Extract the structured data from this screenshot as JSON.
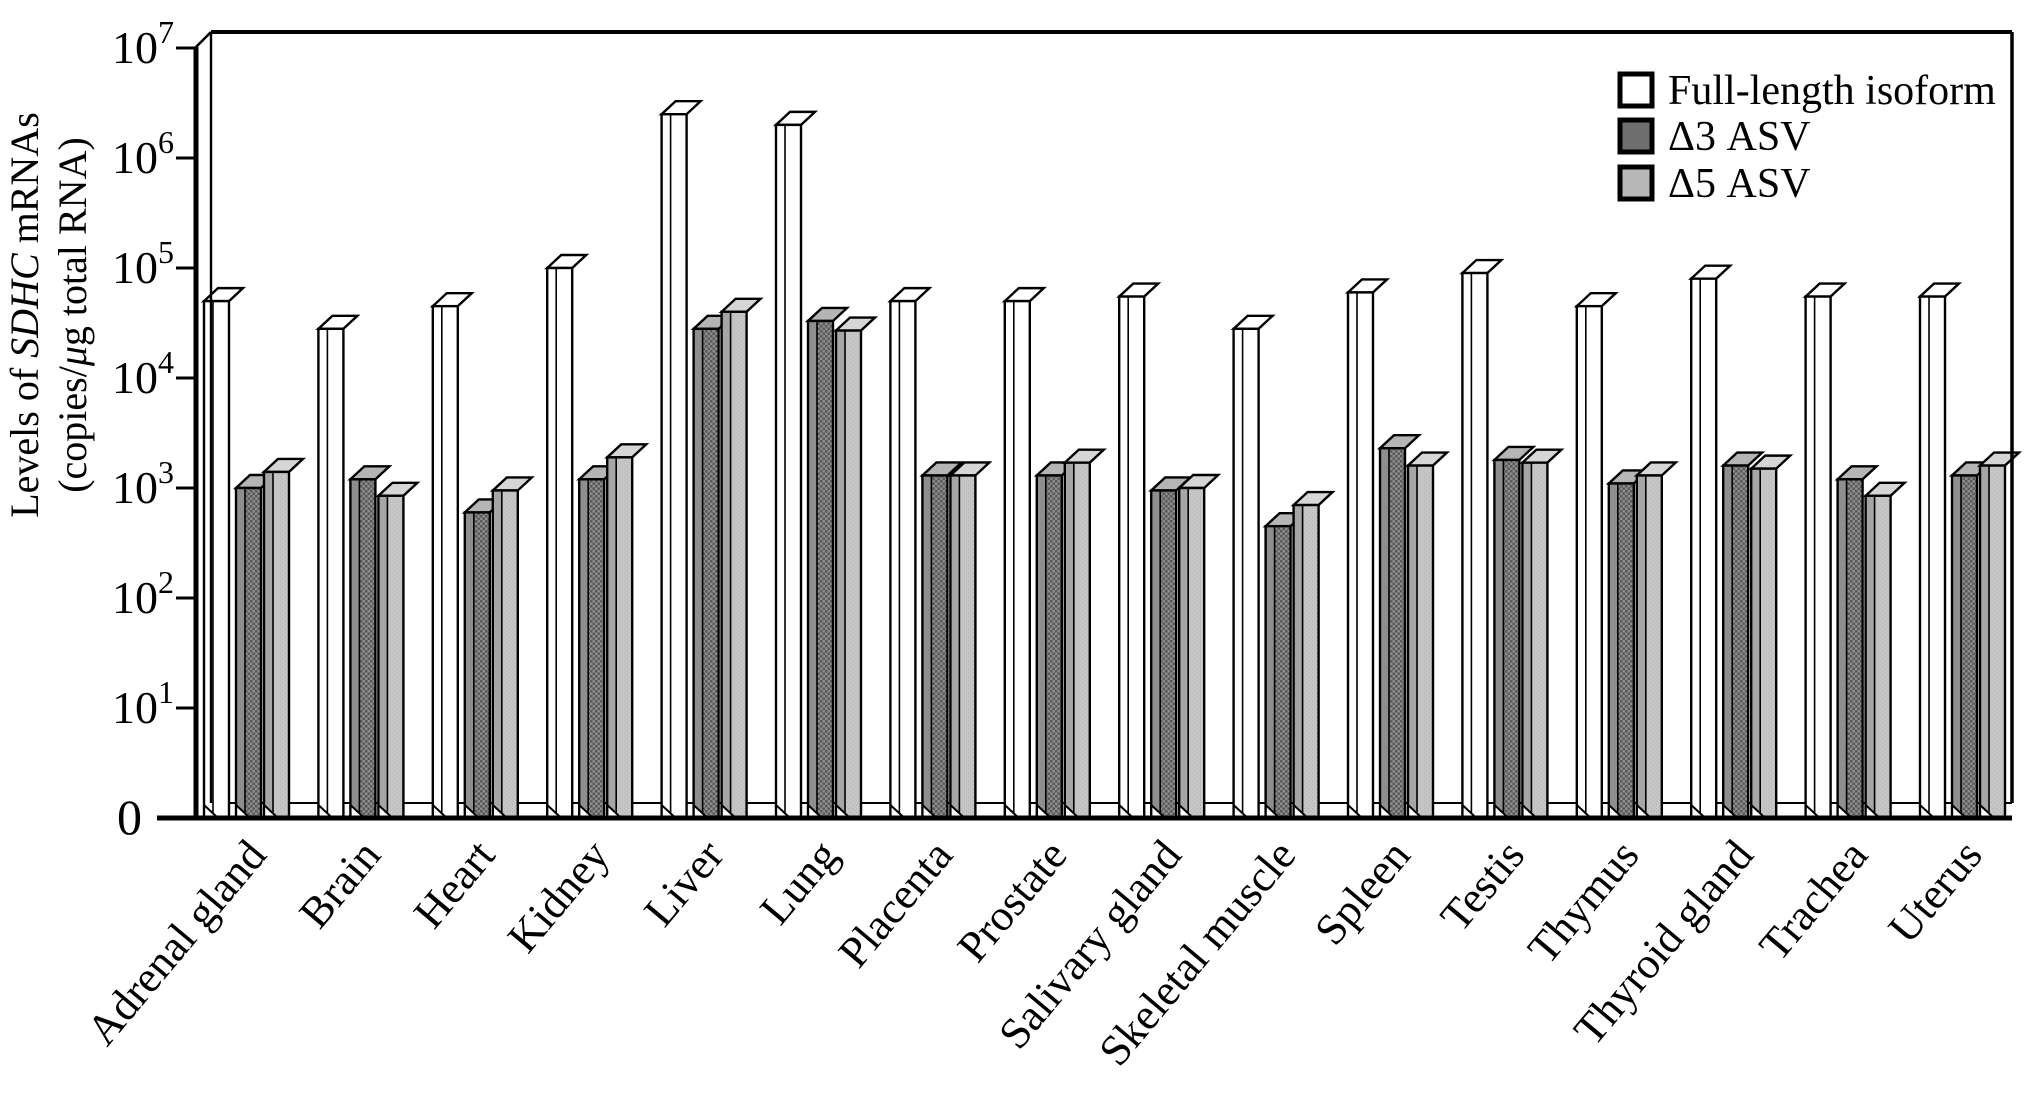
{
  "figure": {
    "background": "#ffffff",
    "outline_color": "#000000"
  },
  "chart_data": {
    "type": "bar",
    "scale": "log",
    "title": "",
    "xlabel": "",
    "ylabel_line1": {
      "pre": "Levels of ",
      "italic": "SDHC",
      "post": " mRNAs"
    },
    "ylabel_line2": {
      "pre": "(copies/",
      "italic": "μ",
      "post": "g total RNA)"
    },
    "ylim": [
      1,
      10000000
    ],
    "grid": false,
    "legend_position": "top-right",
    "y_axis": {
      "zero_label": "0",
      "power_base": "10",
      "exponents": [
        "1",
        "2",
        "3",
        "4",
        "5",
        "6",
        "7"
      ]
    },
    "categories": [
      "Adrenal gland",
      "Brain",
      "Heart",
      "Kidney",
      "Liver",
      "Lung",
      "Placenta",
      "Prostate",
      "Salivary gland",
      "Skeletal muscle",
      "Spleen",
      "Testis",
      "Thymus",
      "Thyroid gland",
      "Trachea",
      "Uterus"
    ],
    "series": [
      {
        "name": "Full-length isoform",
        "values": [
          50000,
          28000,
          45000,
          100000,
          2500000,
          2000000,
          50000,
          50000,
          55000,
          28000,
          60000,
          90000,
          45000,
          80000,
          55000,
          55000
        ],
        "front_color": "#ffffff",
        "strip_color": "#ffffff",
        "top_color": "#ffffff",
        "pattern": "none",
        "legend_swatch": "#ffffff"
      },
      {
        "name": "Δ3 ASV",
        "values": [
          1000,
          1200,
          600,
          1200,
          28000,
          33000,
          1300,
          1300,
          950,
          450,
          2300,
          1800,
          1100,
          1600,
          1200,
          1300
        ],
        "front_color": "#7a7a7a",
        "strip_color": "#8e8e8e",
        "top_color": "#b5b5b5",
        "pattern": "checker-dark",
        "legend_swatch": "#6e6e6e"
      },
      {
        "name": "Δ5 ASV",
        "values": [
          1400,
          850,
          950,
          1900,
          40000,
          27000,
          1300,
          1700,
          1000,
          700,
          1600,
          1700,
          1300,
          1500,
          850,
          1600
        ],
        "front_color": "#c5c5c5",
        "strip_color": "#a6a6a6",
        "top_color": "#d6d6d6",
        "pattern": "stipple-light",
        "legend_swatch": "#b7b7b7"
      }
    ]
  }
}
